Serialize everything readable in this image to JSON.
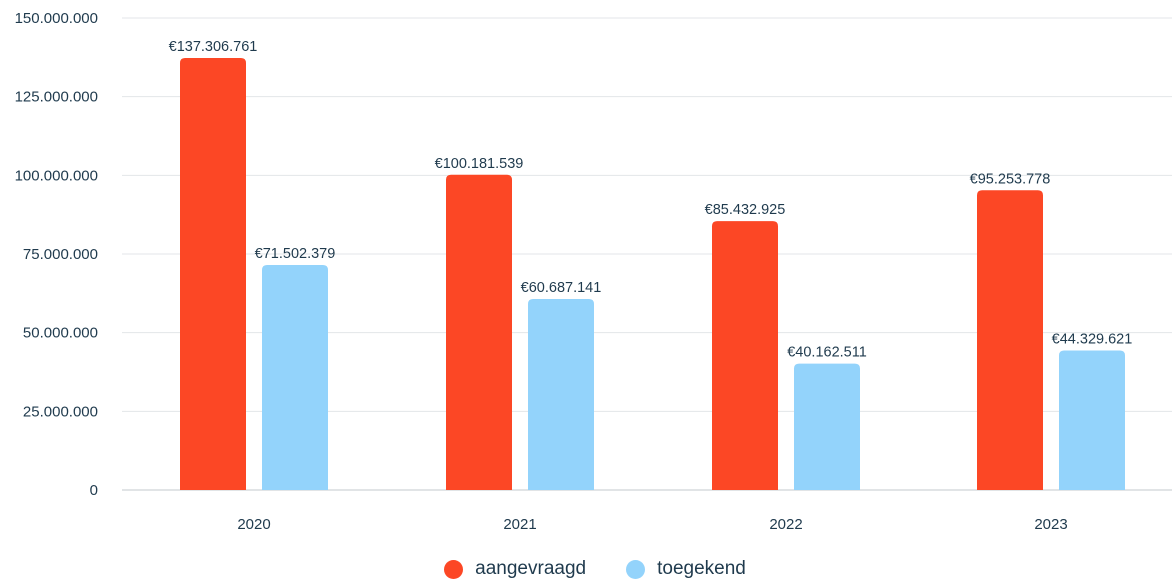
{
  "chart_data": {
    "type": "bar",
    "categories": [
      "2020",
      "2021",
      "2022",
      "2023"
    ],
    "series": [
      {
        "name": "aangevraagd",
        "color": "#fc4725",
        "values": [
          137306761,
          100181539,
          85432925,
          95253778
        ],
        "labels": [
          "€137.306.761",
          "€100.181.539",
          "€85.432.925",
          "€95.253.778"
        ]
      },
      {
        "name": "toegekend",
        "color": "#93d3fb",
        "values": [
          71502379,
          60687141,
          40162511,
          44329621
        ],
        "labels": [
          "€71.502.379",
          "€60.687.141",
          "€40.162.511",
          "€44.329.621"
        ]
      }
    ],
    "ylim": [
      0,
      150000000
    ],
    "yticks": [
      0,
      25000000,
      50000000,
      75000000,
      100000000,
      125000000,
      150000000
    ],
    "ytick_labels": [
      "0",
      "25.000.000",
      "50.000.000",
      "75.000.000",
      "100.000.000",
      "125.000.000",
      "150.000.000"
    ],
    "grid": true,
    "legend_position": "bottom-center"
  }
}
